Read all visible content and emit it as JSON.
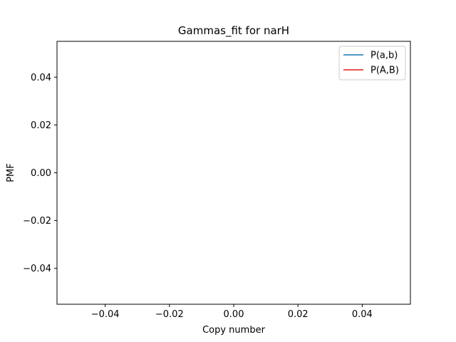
{
  "chart_data": {
    "type": "line",
    "title": "Gammas_fit for narH",
    "xlabel": "Copy number",
    "ylabel": "PMF",
    "xlim": [
      -0.055,
      0.055
    ],
    "ylim": [
      -0.055,
      0.055
    ],
    "x_ticks": [
      -0.04,
      -0.02,
      0.0,
      0.02,
      0.04
    ],
    "x_tick_labels": [
      "−0.04",
      "−0.02",
      "0.00",
      "0.02",
      "0.04"
    ],
    "y_ticks": [
      -0.04,
      -0.02,
      0.0,
      0.02,
      0.04
    ],
    "y_tick_labels": [
      "−0.04",
      "−0.02",
      "0.00",
      "0.02",
      "0.04"
    ],
    "grid": false,
    "legend_position": "top-right",
    "series": [
      {
        "name": "P(a,b)",
        "color": "#1f77b4",
        "x": [],
        "y": []
      },
      {
        "name": "P(A,B)",
        "color": "#e41a1c",
        "x": [],
        "y": []
      }
    ]
  }
}
